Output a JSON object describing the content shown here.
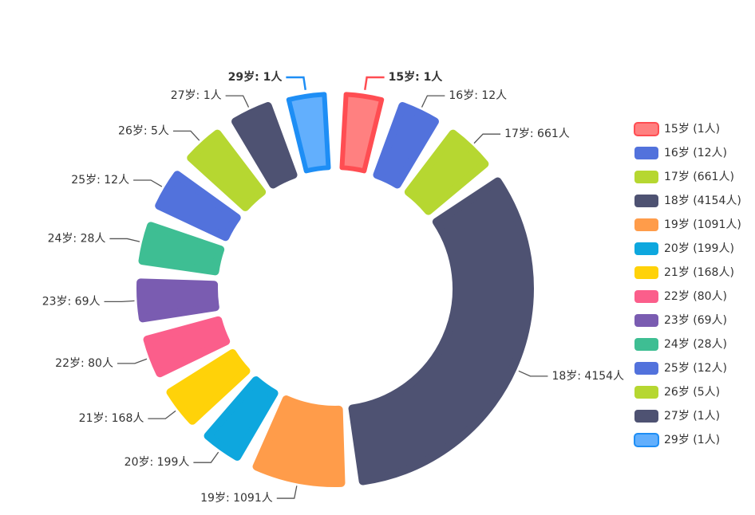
{
  "chart_data": {
    "type": "pie",
    "categories": [
      "15岁",
      "16岁",
      "17岁",
      "18岁",
      "19岁",
      "20岁",
      "21岁",
      "22岁",
      "23岁",
      "24岁",
      "25岁",
      "26岁",
      "27岁",
      "29岁"
    ],
    "values": [
      1,
      12,
      661,
      4154,
      1091,
      199,
      168,
      80,
      69,
      28,
      12,
      5,
      1,
      1
    ],
    "value_labels": [
      "15岁: 1人",
      "16岁: 12人",
      "17岁: 661人",
      "18岁: 4154人",
      "19岁: 1091人",
      "20岁: 199人",
      "21岁: 168人",
      "22岁: 80人",
      "23岁: 69人",
      "24岁: 28人",
      "25岁: 12人",
      "26岁: 5人",
      "27岁: 1人",
      "29岁: 1人"
    ],
    "legend_labels": [
      "15岁 (1人)",
      "16岁 (12人)",
      "17岁 (661人)",
      "18岁 (4154人)",
      "19岁 (1091人)",
      "20岁 (199人)",
      "21岁 (168人)",
      "22岁 (80人)",
      "23岁 (69人)",
      "24岁 (28人)",
      "25岁 (12人)",
      "26岁 (5人)",
      "27岁 (1人)",
      "29岁 (1人)"
    ],
    "colors": [
      "#ff8080",
      "#5272dc",
      "#b6d731",
      "#4e5272",
      "#ff9c4a",
      "#0ea7de",
      "#ffd209",
      "#fb5e8b",
      "#7a5cb1",
      "#3ebe93",
      "#5272dc",
      "#b6d731",
      "#4e5272",
      "#62affd"
    ],
    "highlighted": [
      {
        "index": 0,
        "color": "#ff4d52"
      },
      {
        "index": 13,
        "color": "#1e8ef5"
      }
    ],
    "legend": "right"
  }
}
